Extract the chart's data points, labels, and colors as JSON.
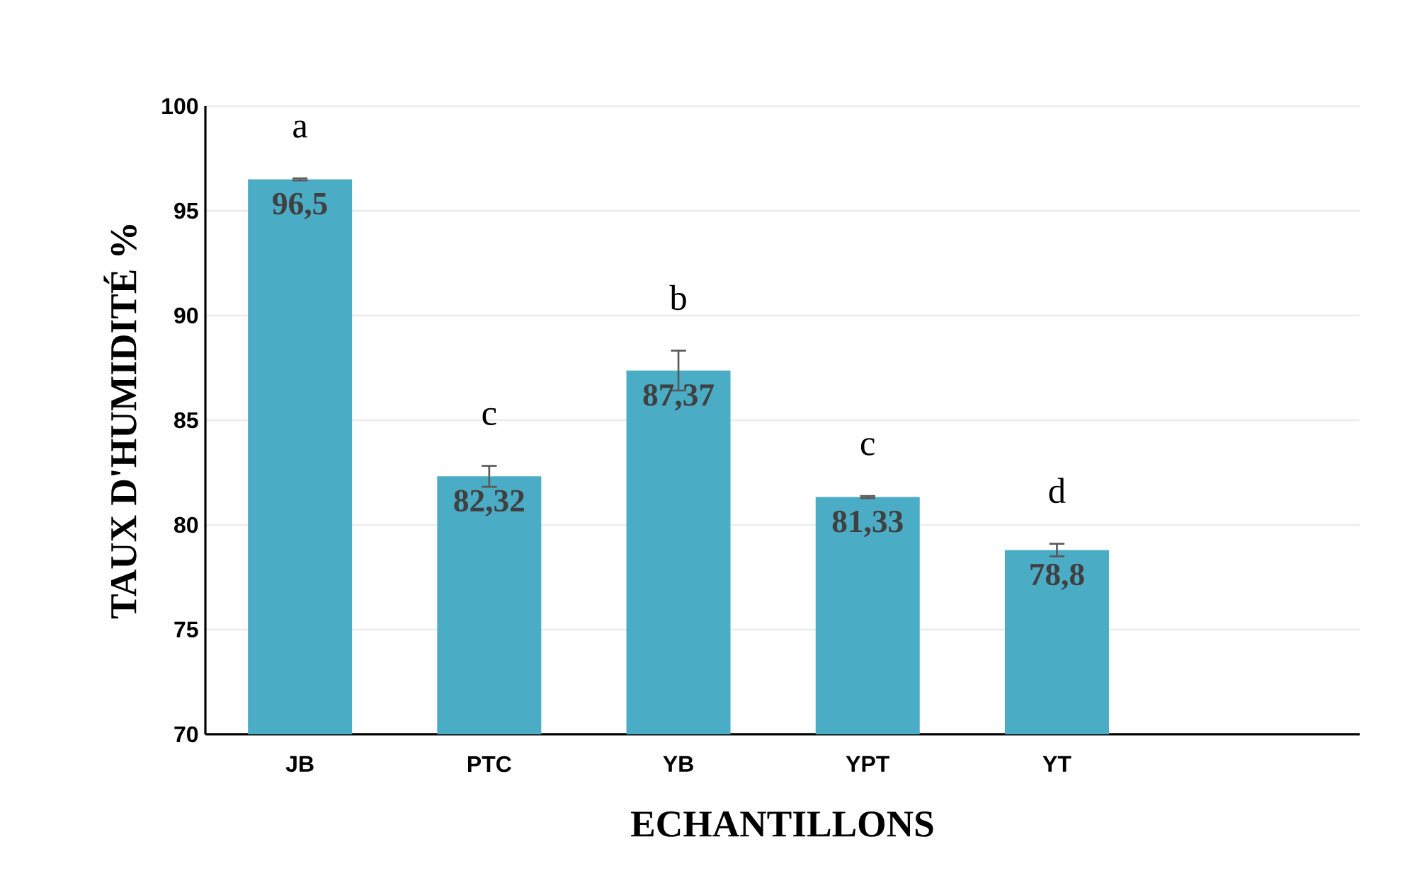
{
  "chart_data": {
    "type": "bar",
    "xlabel": "ECHANTILLONS",
    "ylabel": "TAUX D'HUMIDITÉ %",
    "categories": [
      "JB",
      "PTC",
      "YB",
      "YPT",
      "YT"
    ],
    "values": [
      96.5,
      82.32,
      87.37,
      81.33,
      78.8
    ],
    "errors": [
      0.05,
      0.5,
      0.95,
      0.05,
      0.3
    ],
    "value_labels": [
      "96,5",
      "82,32",
      "87,37",
      "81,33",
      "78,8"
    ],
    "color": "#4bacc6",
    "ylim": [
      70,
      100
    ],
    "yticks": [
      70,
      75,
      80,
      85,
      90,
      95,
      100
    ],
    "grid": "y",
    "annotations": [
      "a",
      "c",
      "b",
      "c",
      "d"
    ]
  }
}
